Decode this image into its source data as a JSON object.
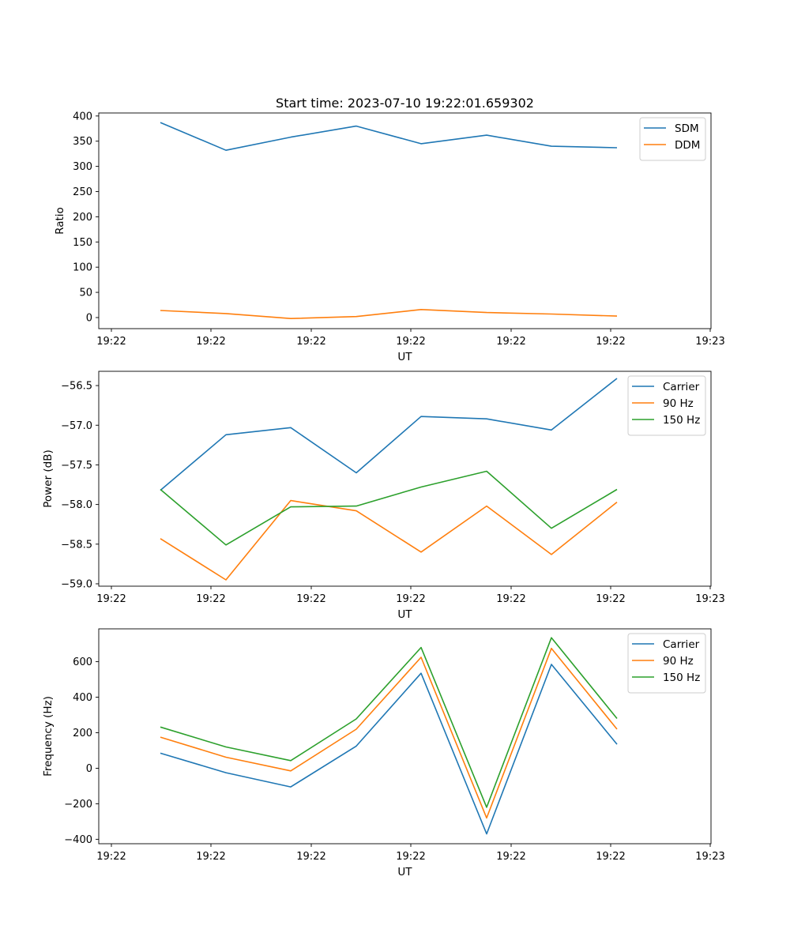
{
  "chart_data": [
    {
      "type": "line",
      "title": "Start time: 2023-07-10 19:22:01.659302",
      "xlabel": "UT",
      "ylabel": "Ratio",
      "x_tick_labels": [
        "19:22",
        "19:22",
        "19:22",
        "19:22",
        "19:22",
        "19:22",
        "19:22",
        "19:23"
      ],
      "y_ticks": [
        0,
        50,
        100,
        150,
        200,
        250,
        300,
        350,
        400
      ],
      "y_tick_labels": [
        "0",
        "50",
        "100",
        "150",
        "200",
        "250",
        "300",
        "350",
        "400"
      ],
      "ylim": [
        -22,
        406
      ],
      "legend_position": "top-right",
      "series": [
        {
          "name": "SDM",
          "color": "#1f77b4",
          "values": [
            387,
            332,
            358,
            380,
            345,
            362,
            340,
            337
          ]
        },
        {
          "name": "DDM",
          "color": "#ff7f0e",
          "values": [
            14,
            8,
            -2,
            2,
            16,
            10,
            7,
            3
          ]
        }
      ]
    },
    {
      "type": "line",
      "title": "",
      "xlabel": "UT",
      "ylabel": "Power (dB)",
      "x_tick_labels": [
        "19:22",
        "19:22",
        "19:22",
        "19:22",
        "19:22",
        "19:22",
        "19:22",
        "19:23"
      ],
      "y_ticks": [
        -59.0,
        -58.5,
        -58.0,
        -57.5,
        -57.0,
        -56.5
      ],
      "y_tick_labels": [
        "−59.0",
        "−58.5",
        "−58.0",
        "−57.5",
        "−57.0",
        "−56.5"
      ],
      "ylim": [
        -59.03,
        -56.32
      ],
      "legend_position": "top-right",
      "series": [
        {
          "name": "Carrier",
          "color": "#1f77b4",
          "values": [
            -57.82,
            -57.12,
            -57.03,
            -57.6,
            -56.89,
            -56.92,
            -57.06,
            -56.41
          ]
        },
        {
          "name": "90 Hz",
          "color": "#ff7f0e",
          "values": [
            -58.43,
            -58.95,
            -57.95,
            -58.08,
            -58.6,
            -58.02,
            -58.63,
            -57.97
          ]
        },
        {
          "name": "150 Hz",
          "color": "#2ca02c",
          "values": [
            -57.81,
            -58.51,
            -58.03,
            -58.02,
            -57.78,
            -57.58,
            -58.3,
            -57.81
          ]
        }
      ]
    },
    {
      "type": "line",
      "title": "",
      "xlabel": "UT",
      "ylabel": "Frequency (Hz)",
      "x_tick_labels": [
        "19:22",
        "19:22",
        "19:22",
        "19:22",
        "19:22",
        "19:22",
        "19:22",
        "19:23"
      ],
      "y_ticks": [
        -400,
        -200,
        0,
        200,
        400,
        600
      ],
      "y_tick_labels": [
        "−400",
        "−200",
        "0",
        "200",
        "400",
        "600"
      ],
      "ylim": [
        -425,
        785
      ],
      "legend_position": "top-right",
      "series": [
        {
          "name": "Carrier",
          "color": "#1f77b4",
          "values": [
            85,
            -25,
            -105,
            125,
            535,
            -370,
            585,
            135
          ]
        },
        {
          "name": "90 Hz",
          "color": "#ff7f0e",
          "values": [
            175,
            62,
            -15,
            220,
            625,
            -280,
            675,
            220
          ]
        },
        {
          "name": "150 Hz",
          "color": "#2ca02c",
          "values": [
            232,
            120,
            43,
            278,
            680,
            -220,
            735,
            280
          ]
        }
      ]
    }
  ]
}
